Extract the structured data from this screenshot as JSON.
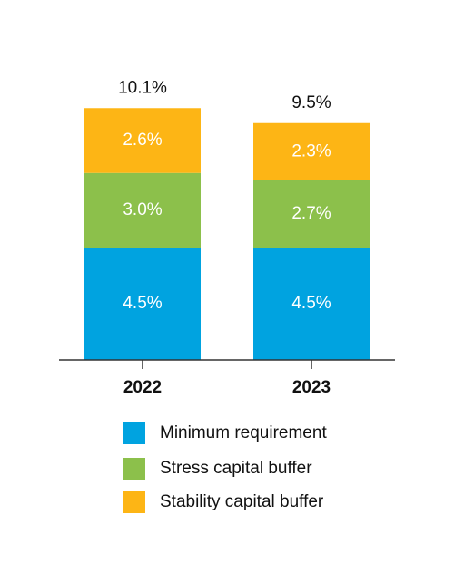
{
  "chart_data": {
    "type": "stacked-bar",
    "categories": [
      "2022",
      "2023"
    ],
    "series": [
      {
        "name": "Minimum requirement",
        "color": "#00a3e0",
        "values": [
          4.5,
          4.5
        ],
        "value_labels": [
          "4.5%",
          "4.5%"
        ]
      },
      {
        "name": "Stress capital buffer",
        "color": "#8cc04b",
        "values": [
          3.0,
          2.7
        ],
        "value_labels": [
          "3.0%",
          "2.7%"
        ]
      },
      {
        "name": "Stability capital buffer",
        "color": "#fdb515",
        "values": [
          2.6,
          2.3
        ],
        "value_labels": [
          "2.6%",
          "2.3%"
        ]
      }
    ],
    "totals": [
      10.1,
      9.5
    ],
    "total_labels": [
      "10.1%",
      "9.5%"
    ]
  }
}
